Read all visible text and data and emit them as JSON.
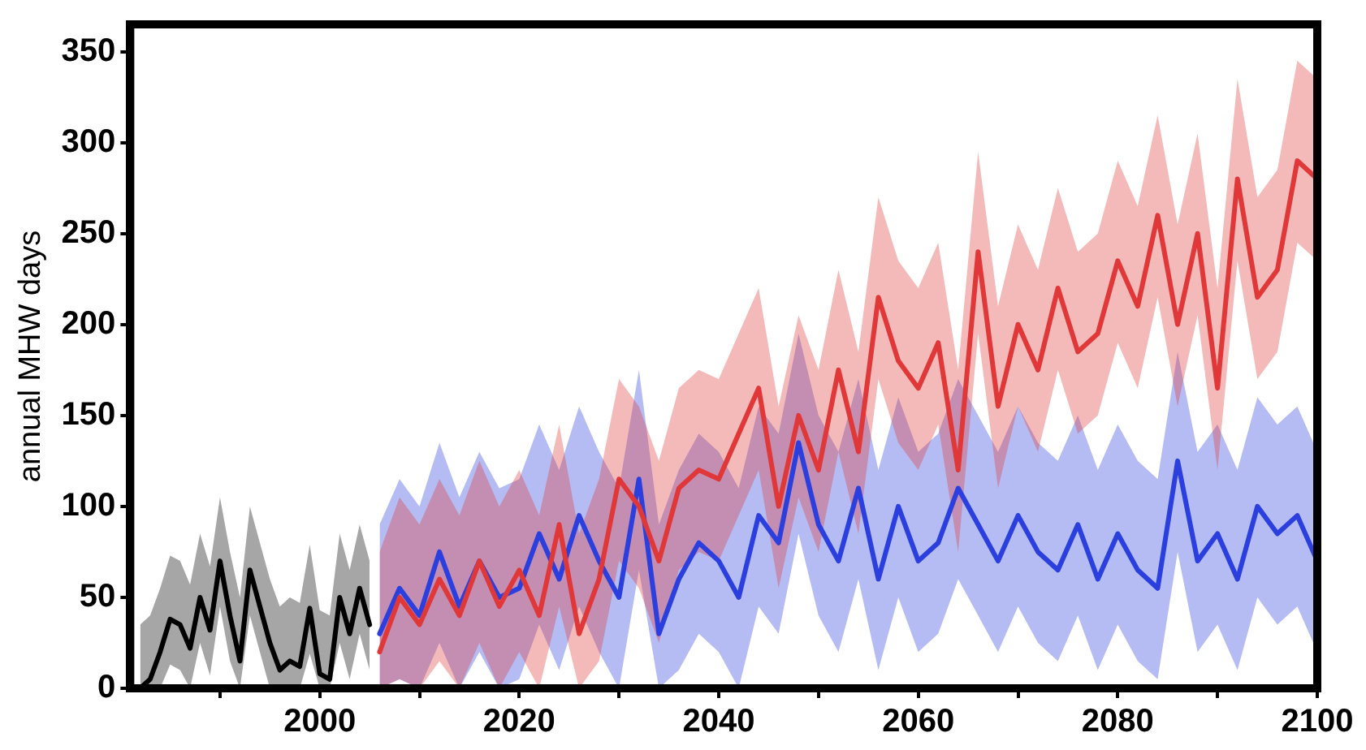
{
  "chart_data": {
    "type": "line",
    "ylabel": "annual MHW days",
    "xlim": [
      1981,
      2100
    ],
    "xticks": [
      {
        "value": 1990,
        "label": null
      },
      2000,
      {
        "value": 2010,
        "label": null
      },
      2020,
      {
        "value": 2030,
        "label": null
      },
      2040,
      {
        "value": 2050,
        "label": null
      },
      2060,
      {
        "value": 2070,
        "label": null
      },
      2080,
      {
        "value": 2090,
        "label": null
      },
      2100
    ],
    "ylim": [
      0,
      365
    ],
    "yticks": [
      0,
      50,
      100,
      150,
      200,
      250,
      300,
      350
    ],
    "grid": false,
    "legend": false,
    "marker": "none",
    "line_style": "solid",
    "series": [
      {
        "color": "#000000",
        "x": [
          1982,
          1983,
          1984,
          1985,
          1986,
          1987,
          1988,
          1989,
          1990,
          1991,
          1992,
          1993,
          1994,
          1995,
          1996,
          1997,
          1998,
          1999,
          2000,
          2001,
          2002,
          2003,
          2004,
          2005
        ],
        "values": [
          0,
          5,
          20,
          38,
          35,
          22,
          50,
          32,
          70,
          40,
          15,
          65,
          45,
          25,
          10,
          15,
          12,
          44,
          8,
          5,
          50,
          30,
          55,
          35
        ],
        "lower": [
          0,
          0,
          0,
          13,
          10,
          0,
          25,
          7,
          45,
          15,
          0,
          40,
          20,
          0,
          0,
          0,
          0,
          19,
          0,
          0,
          25,
          5,
          30,
          10
        ],
        "upper": [
          35,
          40,
          55,
          73,
          70,
          57,
          85,
          67,
          105,
          75,
          50,
          100,
          80,
          60,
          45,
          50,
          47,
          79,
          43,
          40,
          85,
          65,
          90,
          70
        ]
      },
      {
        "color": "#e03838",
        "x": [
          2006,
          2008,
          2010,
          2012,
          2014,
          2016,
          2018,
          2020,
          2022,
          2024,
          2026,
          2028,
          2030,
          2032,
          2034,
          2036,
          2038,
          2040,
          2042,
          2044,
          2046,
          2048,
          2050,
          2052,
          2054,
          2056,
          2058,
          2060,
          2062,
          2064,
          2066,
          2068,
          2070,
          2072,
          2074,
          2076,
          2078,
          2080,
          2082,
          2084,
          2086,
          2088,
          2090,
          2092,
          2094,
          2096,
          2098,
          2100
        ],
        "values": [
          20,
          50,
          35,
          60,
          40,
          70,
          45,
          65,
          40,
          90,
          30,
          60,
          115,
          100,
          70,
          110,
          120,
          115,
          140,
          165,
          100,
          150,
          120,
          175,
          130,
          215,
          180,
          165,
          190,
          120,
          240,
          155,
          200,
          175,
          220,
          185,
          195,
          235,
          210,
          260,
          200,
          250,
          165,
          280,
          215,
          230,
          290,
          280
        ],
        "lower": [
          0,
          5,
          0,
          15,
          0,
          25,
          0,
          20,
          0,
          45,
          0,
          15,
          70,
          55,
          25,
          65,
          75,
          70,
          95,
          120,
          55,
          105,
          75,
          130,
          85,
          170,
          135,
          120,
          145,
          75,
          195,
          110,
          155,
          130,
          175,
          140,
          150,
          190,
          165,
          215,
          155,
          205,
          120,
          235,
          170,
          185,
          245,
          235
        ],
        "upper": [
          75,
          105,
          90,
          115,
          95,
          125,
          100,
          120,
          95,
          145,
          85,
          115,
          170,
          155,
          125,
          165,
          175,
          170,
          195,
          220,
          155,
          205,
          175,
          230,
          185,
          270,
          235,
          220,
          245,
          175,
          295,
          210,
          255,
          230,
          275,
          240,
          250,
          290,
          265,
          315,
          255,
          305,
          220,
          335,
          270,
          285,
          345,
          335
        ]
      },
      {
        "color": "#2a3fdd",
        "x": [
          2006,
          2008,
          2010,
          2012,
          2014,
          2016,
          2018,
          2020,
          2022,
          2024,
          2026,
          2028,
          2030,
          2032,
          2034,
          2036,
          2038,
          2040,
          2042,
          2044,
          2046,
          2048,
          2050,
          2052,
          2054,
          2056,
          2058,
          2060,
          2062,
          2064,
          2066,
          2068,
          2070,
          2072,
          2074,
          2076,
          2078,
          2080,
          2082,
          2084,
          2086,
          2088,
          2090,
          2092,
          2094,
          2096,
          2098,
          2100
        ],
        "values": [
          30,
          55,
          40,
          75,
          45,
          70,
          50,
          55,
          85,
          60,
          95,
          70,
          50,
          115,
          30,
          60,
          80,
          70,
          50,
          95,
          80,
          135,
          90,
          70,
          110,
          60,
          100,
          70,
          80,
          110,
          90,
          70,
          95,
          75,
          65,
          90,
          60,
          85,
          65,
          55,
          125,
          70,
          85,
          60,
          100,
          85,
          95,
          70
        ],
        "lower": [
          0,
          5,
          0,
          25,
          0,
          20,
          0,
          5,
          35,
          10,
          45,
          20,
          0,
          65,
          0,
          10,
          30,
          20,
          0,
          45,
          30,
          85,
          40,
          20,
          60,
          10,
          50,
          20,
          30,
          60,
          40,
          20,
          45,
          25,
          15,
          40,
          10,
          35,
          15,
          5,
          75,
          20,
          35,
          10,
          50,
          35,
          45,
          20
        ],
        "upper": [
          90,
          115,
          100,
          135,
          105,
          130,
          110,
          115,
          145,
          120,
          155,
          130,
          110,
          175,
          90,
          120,
          140,
          130,
          110,
          155,
          140,
          195,
          150,
          130,
          170,
          120,
          160,
          130,
          140,
          170,
          150,
          130,
          155,
          135,
          125,
          150,
          120,
          145,
          125,
          115,
          185,
          130,
          145,
          120,
          160,
          145,
          155,
          130
        ]
      }
    ]
  }
}
